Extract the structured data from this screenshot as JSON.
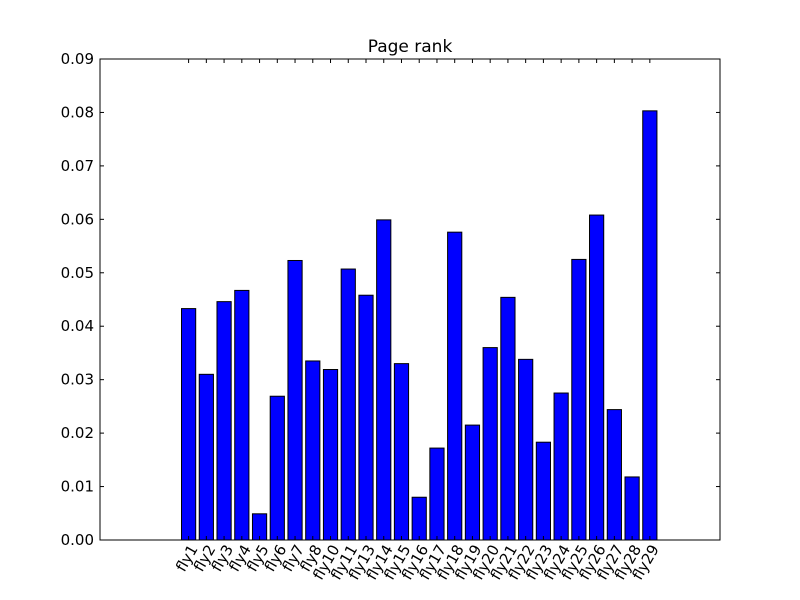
{
  "chart_data": {
    "type": "bar",
    "title": "Page rank",
    "xlabel": "",
    "ylabel": "",
    "categories": [
      "fly1",
      "fly2",
      "fly3",
      "fly4",
      "fly5",
      "fly6",
      "fly7",
      "fly8",
      "fly10",
      "fly11",
      "fly13",
      "fly14",
      "fly15",
      "fly16",
      "fly17",
      "fly18",
      "fly19",
      "fly20",
      "fly21",
      "fly22",
      "fly23",
      "fly24",
      "fly25",
      "fly26",
      "fly27",
      "fly28",
      "fly29"
    ],
    "values": [
      0.0433,
      0.031,
      0.0446,
      0.0467,
      0.0049,
      0.0269,
      0.0523,
      0.0335,
      0.0319,
      0.0507,
      0.0458,
      0.0599,
      0.033,
      0.008,
      0.0172,
      0.0576,
      0.0215,
      0.036,
      0.0454,
      0.0338,
      0.0183,
      0.0275,
      0.0525,
      0.0608,
      0.0244,
      0.0118,
      0.0803
    ],
    "ylim": [
      0,
      0.09
    ],
    "yticks": [
      "0.00",
      "0.01",
      "0.02",
      "0.03",
      "0.04",
      "0.05",
      "0.06",
      "0.07",
      "0.08",
      "0.09"
    ],
    "bar_color": "#0000ff",
    "grid": false,
    "legend": "none"
  }
}
